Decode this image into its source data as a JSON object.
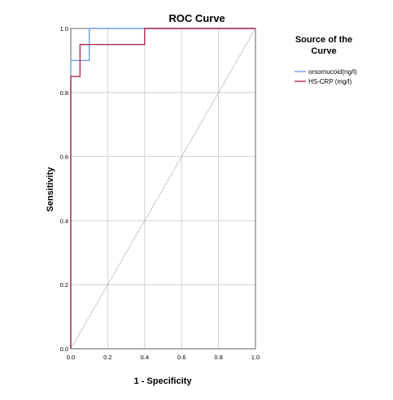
{
  "chart_data": {
    "type": "line",
    "title": "ROC Curve",
    "xlabel": "1 - Specificity",
    "ylabel": "Sensitivity",
    "xlim": [
      0,
      1
    ],
    "ylim": [
      0,
      1
    ],
    "xticks": [
      "0.0",
      "0.2",
      "0.4",
      "0.6",
      "0.8",
      "1.0"
    ],
    "yticks": [
      "0.0",
      "0.2",
      "0.4",
      "0.6",
      "0.8",
      "1.0"
    ],
    "grid": true,
    "legend": {
      "title": "Source of the Curve",
      "placement": "right"
    },
    "series": [
      {
        "name": "orsomucoid(ng/l)",
        "color": "#6fa0e0",
        "x": [
          0,
          0,
          0.1,
          0.1,
          1
        ],
        "y": [
          0,
          0.9,
          0.9,
          1.0,
          1.0
        ]
      },
      {
        "name": "HS-CRP (mg/l)",
        "color": "#b5294a",
        "x": [
          0,
          0,
          0.05,
          0.05,
          0.4,
          0.4,
          1
        ],
        "y": [
          0,
          0.85,
          0.85,
          0.95,
          0.95,
          1.0,
          1.0
        ]
      }
    ]
  }
}
